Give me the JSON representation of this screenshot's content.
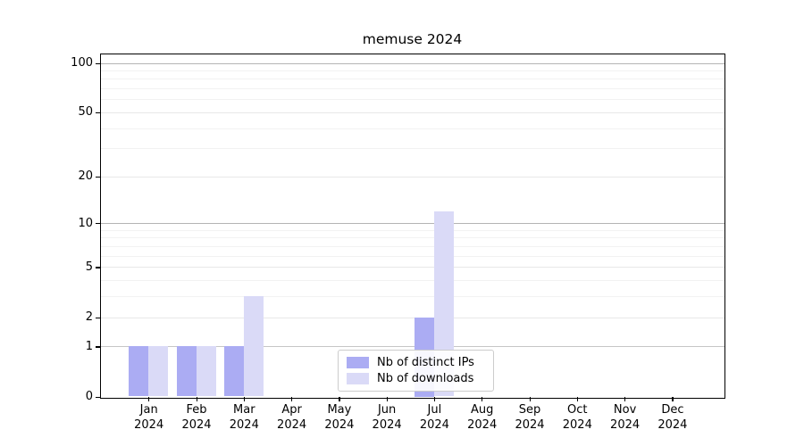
{
  "chart_data": {
    "type": "bar",
    "title": "memuse 2024",
    "months": [
      "Jan",
      "Feb",
      "Mar",
      "Apr",
      "May",
      "Jun",
      "Jul",
      "Aug",
      "Sep",
      "Oct",
      "Nov",
      "Dec"
    ],
    "year": "2024",
    "series": [
      {
        "name": "Nb of distinct IPs",
        "color": "#abacf3",
        "values": [
          1,
          1,
          1,
          0,
          0,
          0,
          2,
          0,
          0,
          0,
          0,
          0
        ]
      },
      {
        "name": "Nb of downloads",
        "color": "#dadaf7",
        "values": [
          1,
          1,
          3,
          0,
          0,
          0,
          12,
          0,
          0,
          0,
          0,
          0
        ]
      }
    ],
    "yscale": "log1p",
    "ylim": [
      0,
      113
    ],
    "yticks": [
      0,
      1,
      2,
      5,
      10,
      20,
      50,
      100
    ],
    "minor_gridline_values": [
      3,
      4,
      6,
      7,
      8,
      9,
      30,
      40,
      60,
      70,
      80,
      90
    ],
    "grid": true,
    "legend_position": "lower center",
    "colors": {
      "grid_minor": "#f2f2f2",
      "grid_major_light": "#e8e8e8",
      "grid_major_one": "#c6c6c6",
      "grid_decade": "#b4b4b4",
      "axis": "#000000",
      "legend_border": "#cccccc"
    }
  }
}
